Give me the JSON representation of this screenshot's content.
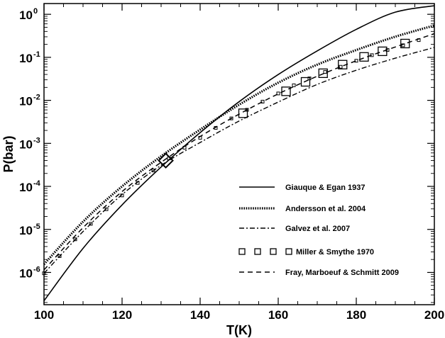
{
  "chart_data": {
    "type": "line",
    "xlabel": "T(K)",
    "ylabel": "P(bar)",
    "xlim": [
      100,
      200
    ],
    "ylim_log10": [
      -6.75,
      0.25
    ],
    "yscale": "log",
    "grid": false,
    "legend_position": "lower-right",
    "x_ticks": [
      "100",
      "120",
      "140",
      "160",
      "180",
      "200"
    ],
    "y_ticks": [
      {
        "base": "10",
        "exp": "-6",
        "value": -6
      },
      {
        "base": "10",
        "exp": "-5",
        "value": -5
      },
      {
        "base": "10",
        "exp": "-4",
        "value": -4
      },
      {
        "base": "10",
        "exp": "-3",
        "value": -3
      },
      {
        "base": "10",
        "exp": "-2",
        "value": -2
      },
      {
        "base": "10",
        "exp": "-1",
        "value": -1
      },
      {
        "base": "10",
        "exp": "0",
        "value": 0
      }
    ],
    "series": [
      {
        "name": "Giauque & Egan 1937",
        "style": "solid",
        "x": [
          100,
          110,
          120,
          130,
          140,
          150,
          160,
          170,
          180,
          190,
          200
        ],
        "log10_y": [
          -6.66,
          -5.44,
          -4.43,
          -3.55,
          -2.75,
          -2.03,
          -1.4,
          -0.85,
          -0.35,
          0.05,
          0.2
        ]
      },
      {
        "name": "Andersson et al. 2004",
        "style": "dotted",
        "x": [
          100,
          110,
          120,
          130,
          140,
          150,
          160,
          170,
          180,
          190,
          200
        ],
        "log10_y": [
          -5.81,
          -4.82,
          -4.0,
          -3.3,
          -2.68,
          -2.1,
          -1.59,
          -1.17,
          -0.83,
          -0.52,
          -0.26
        ]
      },
      {
        "name": "Galvez et al. 2007",
        "style": "dash-dot",
        "x": [
          100,
          110,
          120,
          130,
          140,
          150,
          160,
          170,
          180,
          190,
          200
        ],
        "log10_y": [
          -6.02,
          -5.05,
          -4.19,
          -3.51,
          -2.98,
          -2.48,
          -2.04,
          -1.63,
          -1.3,
          -1.02,
          -0.77
        ]
      },
      {
        "name": "Miller & Smythe 1970",
        "style": "markers",
        "x": [
          131.2,
          151.0,
          162.0,
          167.0,
          171.5,
          176.5,
          182.0,
          186.7,
          192.5
        ],
        "log10_y": [
          -3.4,
          -2.3,
          -1.79,
          -1.57,
          -1.37,
          -1.17,
          -0.99,
          -0.86,
          -0.68
        ]
      },
      {
        "name": "Fray, Marboeuf & Schmitt 2009",
        "style": "dashed",
        "x": [
          100,
          110,
          120,
          130,
          140,
          150,
          160,
          170,
          180,
          190,
          200
        ],
        "log10_y": [
          -5.94,
          -4.96,
          -4.12,
          -3.44,
          -2.84,
          -2.32,
          -1.85,
          -1.44,
          -1.08,
          -0.76,
          -0.45
        ]
      }
    ],
    "small_markers": {
      "x": [
        100,
        104,
        108,
        112,
        116,
        120,
        124,
        128,
        132,
        136,
        140,
        144,
        148,
        152,
        156,
        160,
        164,
        168,
        172,
        176,
        180,
        184,
        188,
        192,
        196
      ],
      "log10_y": [
        -6.02,
        -5.62,
        -5.23,
        -4.87,
        -4.53,
        -4.21,
        -3.92,
        -3.63,
        -3.35,
        -3.1,
        -2.87,
        -2.64,
        -2.42,
        -2.22,
        -2.03,
        -1.84,
        -1.65,
        -1.49,
        -1.34,
        -1.22,
        -1.08,
        -0.95,
        -0.83,
        -0.72,
        -0.6
      ]
    }
  }
}
